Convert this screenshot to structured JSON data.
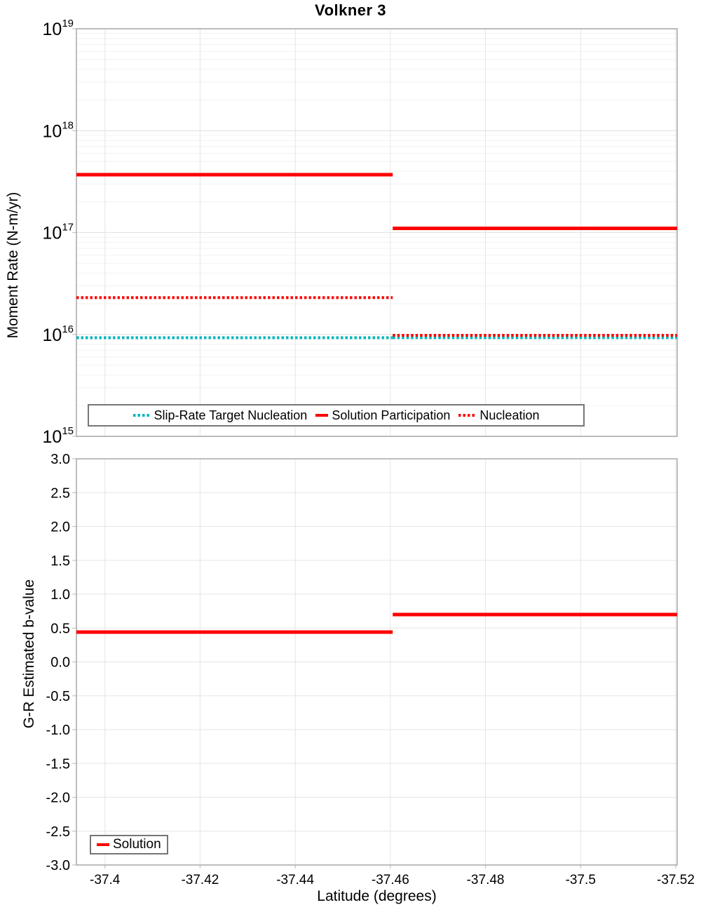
{
  "figure": {
    "title": "Volkner 3"
  },
  "colors": {
    "red": "#ff0000",
    "cyan": "#00b7ba",
    "grid_major": "#e5e5e5",
    "grid_minor": "#f2f2f2",
    "border": "#a8a8a8",
    "tick": "#c4c4c4",
    "legend_border": "#767676",
    "text": "#000000"
  },
  "chart_data": [
    {
      "type": "line",
      "title": "Volkner 3",
      "ylabel": "Moment Rate (N-m/yr)",
      "yscale": "log",
      "ylim": [
        1000000000000000.0,
        1e+19
      ],
      "ytick_exponents": [
        15,
        16,
        17,
        18,
        19
      ],
      "xlim": [
        -37.394,
        -37.5203
      ],
      "xticks": [
        -37.4,
        -37.42,
        -37.44,
        -37.46,
        -37.48,
        -37.5,
        -37.52
      ],
      "xtick_labels": [
        "-37.4",
        "-37.42",
        "-37.44",
        "-37.46",
        "-37.48",
        "-37.5",
        "-37.52"
      ],
      "show_xtick_labels": false,
      "grid": true,
      "legend_position": "inside-bottom",
      "step_at": -37.4605,
      "series": [
        {
          "name": "Slip-Rate Target Nucleation",
          "color": "#00b7ba",
          "style": "dotted",
          "segments": [
            {
              "x": [
                -37.394,
                -37.4605
              ],
              "y": 9300000000000000.0
            },
            {
              "x": [
                -37.4605,
                -37.5203
              ],
              "y": 9300000000000000.0
            }
          ]
        },
        {
          "name": "Solution Participation",
          "color": "#ff0000",
          "style": "solid",
          "segments": [
            {
              "x": [
                -37.394,
                -37.4605
              ],
              "y": 3.7e+17
            },
            {
              "x": [
                -37.4605,
                -37.5203
              ],
              "y": 1.1e+17
            }
          ]
        },
        {
          "name": "Nucleation",
          "color": "#ff0000",
          "style": "dotted",
          "segments": [
            {
              "x": [
                -37.394,
                -37.4605
              ],
              "y": 2.3e+16
            },
            {
              "x": [
                -37.4605,
                -37.5203
              ],
              "y": 9800000000000000.0
            }
          ]
        }
      ]
    },
    {
      "type": "line",
      "ylabel": "G-R Estimated b-value",
      "xlabel": "Latitude (degrees)",
      "yscale": "linear",
      "ylim": [
        -3.0,
        3.0
      ],
      "yticks": [
        3.0,
        2.5,
        2.0,
        1.5,
        1.0,
        0.5,
        0.0,
        -0.5,
        -1.0,
        -1.5,
        -2.0,
        -2.5,
        -3.0
      ],
      "ytick_decimals": 1,
      "xlim": [
        -37.394,
        -37.5203
      ],
      "xticks": [
        -37.4,
        -37.42,
        -37.44,
        -37.46,
        -37.48,
        -37.5,
        -37.52
      ],
      "xtick_labels": [
        "-37.4",
        "-37.42",
        "-37.44",
        "-37.46",
        "-37.48",
        "-37.5",
        "-37.52"
      ],
      "show_xtick_labels": true,
      "grid": true,
      "legend_position": "inside-bottom-left",
      "step_at": -37.4605,
      "series": [
        {
          "name": "Solution",
          "color": "#ff0000",
          "style": "solid",
          "segments": [
            {
              "x": [
                -37.394,
                -37.4605
              ],
              "y": 0.44
            },
            {
              "x": [
                -37.4605,
                -37.5203
              ],
              "y": 0.7
            }
          ]
        }
      ]
    }
  ]
}
